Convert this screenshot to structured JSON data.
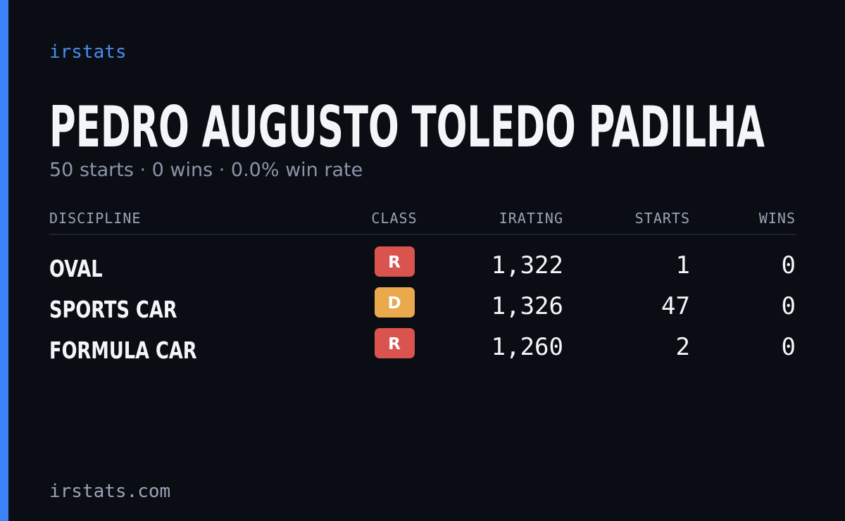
{
  "brand": "irstats",
  "name": "PEDRO AUGUSTO TOLEDO PADILHA",
  "summary": "50 starts · 0 wins · 0.0% win rate",
  "table": {
    "columns": [
      "DISCIPLINE",
      "CLASS",
      "IRATING",
      "STARTS",
      "WINS"
    ],
    "rows": [
      {
        "discipline": "OVAL",
        "class": "R",
        "class_color": "#d9534f",
        "irating": "1,322",
        "starts": "1",
        "wins": "0"
      },
      {
        "discipline": "SPORTS CAR",
        "class": "D",
        "class_color": "#e9a94c",
        "irating": "1,326",
        "starts": "47",
        "wins": "0"
      },
      {
        "discipline": "FORMULA CAR",
        "class": "R",
        "class_color": "#d9534f",
        "irating": "1,260",
        "starts": "2",
        "wins": "0"
      }
    ]
  },
  "footer": "irstats.com"
}
